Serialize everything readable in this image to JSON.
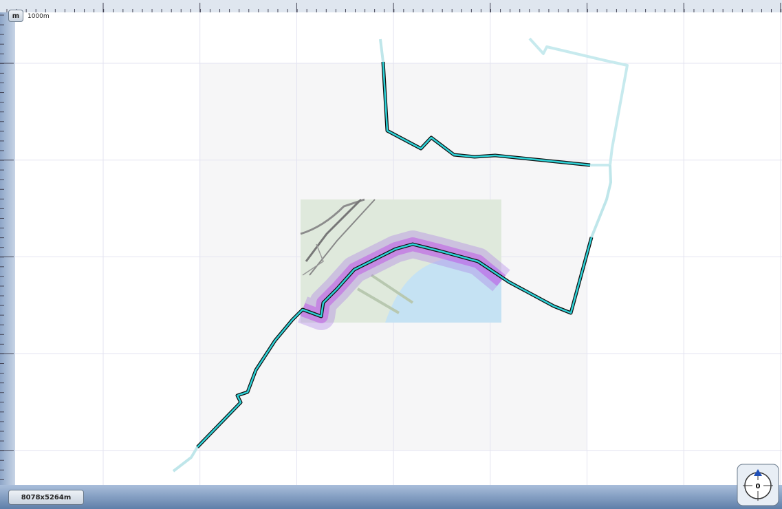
{
  "toolbar": {
    "unit_button": "m",
    "scale_label": "1000m"
  },
  "status": {
    "size": "8078x5264m"
  },
  "compass": {
    "heading": "0"
  }
}
